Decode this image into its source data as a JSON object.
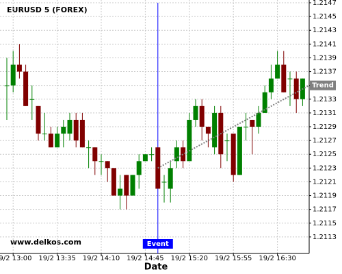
{
  "chart_data": {
    "type": "candlestick",
    "title": "EURUSD 5 (FOREX)",
    "watermark": "www.delkos.com",
    "x_label": "Date",
    "categories": [
      null,
      "19/2 13:00",
      null,
      null,
      null,
      null,
      null,
      null,
      "19/2 13:35",
      null,
      null,
      null,
      null,
      null,
      null,
      "19/2 14:10",
      null,
      null,
      null,
      null,
      null,
      null,
      "19/2 14:45",
      null,
      null,
      null,
      null,
      null,
      null,
      "19/2 15:20",
      null,
      null,
      null,
      null,
      null,
      null,
      "19/2 15:55",
      null,
      null,
      null,
      null,
      null,
      null,
      "19/2 16:30",
      null,
      null,
      null,
      null
    ],
    "open": [
      1.2135,
      1.2135,
      1.2138,
      1.2137,
      1.2133,
      1.2132,
      1.2128,
      1.2128,
      1.2126,
      1.2128,
      1.2128,
      1.213,
      1.213,
      1.2126,
      1.2126,
      1.2124,
      1.2124,
      1.2123,
      1.2119,
      1.2122,
      1.2119,
      1.2122,
      1.2124,
      1.2125,
      1.2126,
      1.2121,
      1.212,
      1.2124,
      1.2126,
      1.2124,
      1.213,
      1.2132,
      1.2129,
      1.2126,
      1.2131,
      1.2127,
      1.2128,
      1.2122,
      1.2129,
      1.213,
      1.2129,
      1.2131,
      1.2134,
      1.2136,
      1.2138,
      1.2136,
      1.2136,
      1.2133
    ],
    "high": [
      1.2139,
      1.214,
      1.2141,
      1.2138,
      1.2135,
      1.2132,
      1.2131,
      1.2129,
      1.2129,
      1.213,
      1.2131,
      1.2131,
      1.2131,
      1.2127,
      1.2126,
      1.2125,
      1.2124,
      1.2123,
      1.2122,
      1.2122,
      1.2122,
      1.2125,
      1.2125,
      1.2126,
      1.2126,
      1.2122,
      1.2124,
      1.2127,
      1.2127,
      1.2131,
      1.2133,
      1.2133,
      1.2129,
      1.2132,
      1.2132,
      1.2128,
      1.2128,
      1.2129,
      1.2131,
      1.213,
      1.2132,
      1.2135,
      1.2138,
      1.214,
      1.214,
      1.2137,
      1.2137,
      1.2136
    ],
    "low": [
      1.213,
      1.2134,
      1.2136,
      1.2132,
      1.213,
      1.2127,
      1.2127,
      1.2126,
      1.2126,
      1.2126,
      1.2127,
      1.2126,
      1.2126,
      1.2123,
      1.2122,
      1.2122,
      1.2121,
      1.2119,
      1.2117,
      1.2117,
      1.2119,
      1.212,
      1.2124,
      1.2124,
      1.212,
      1.2118,
      1.2118,
      1.2123,
      1.2123,
      1.2124,
      1.2129,
      1.2127,
      1.2126,
      1.2125,
      1.2123,
      1.2124,
      1.2121,
      1.2122,
      1.2127,
      1.2125,
      1.2128,
      1.2131,
      1.2133,
      1.2136,
      1.2134,
      1.2132,
      1.2131,
      1.2132
    ],
    "close": [
      1.2135,
      1.2138,
      1.2137,
      1.2132,
      1.2133,
      1.2128,
      1.2128,
      1.2126,
      1.2128,
      1.2129,
      1.213,
      1.2127,
      1.2126,
      1.2126,
      1.2124,
      1.2124,
      1.2123,
      1.2119,
      1.212,
      1.2119,
      1.2122,
      1.2124,
      1.2125,
      1.2125,
      1.212,
      1.2121,
      1.2123,
      1.2126,
      1.2124,
      1.213,
      1.2132,
      1.2129,
      1.2128,
      1.2131,
      1.2125,
      1.2127,
      1.2122,
      1.2129,
      1.2129,
      1.2129,
      1.2131,
      1.2134,
      1.2136,
      1.2138,
      1.2134,
      1.2136,
      1.2133,
      1.2136
    ],
    "up_color": "#008000",
    "down_color": "#800000",
    "ylim": [
      1.2111,
      1.2147
    ],
    "yticks": [
      1.2147,
      1.2145,
      1.2143,
      1.2141,
      1.2139,
      1.2137,
      1.2135,
      1.2133,
      1.2131,
      1.2129,
      1.2127,
      1.2125,
      1.2123,
      1.2121,
      1.2119,
      1.2117,
      1.2115,
      1.2113
    ],
    "grid": true,
    "event": {
      "label": "Event",
      "category_index": 24,
      "color": "#0000ff"
    },
    "trend": {
      "label": "Trend",
      "from": 1.2123,
      "to": 1.2135,
      "color": "#808080"
    }
  }
}
